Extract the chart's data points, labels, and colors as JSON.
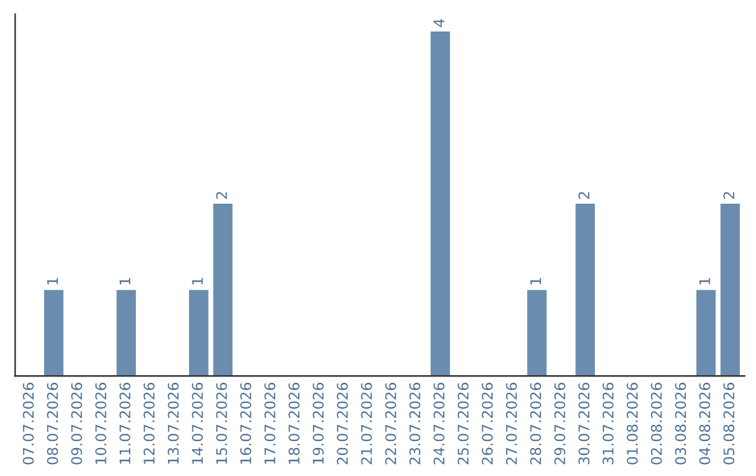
{
  "chart_data": {
    "type": "bar",
    "categories": [
      "07.07.2026",
      "08.07.2026",
      "09.07.2026",
      "10.07.2026",
      "11.07.2026",
      "12.07.2026",
      "13.07.2026",
      "14.07.2026",
      "15.07.2026",
      "16.07.2026",
      "17.07.2026",
      "18.07.2026",
      "19.07.2026",
      "20.07.2026",
      "21.07.2026",
      "22.07.2026",
      "23.07.2026",
      "24.07.2026",
      "25.07.2026",
      "26.07.2026",
      "27.07.2026",
      "28.07.2026",
      "29.07.2026",
      "30.07.2026",
      "31.07.2026",
      "01.08.2026",
      "02.08.2026",
      "03.08.2026",
      "04.08.2026",
      "05.08.2026"
    ],
    "values": [
      0,
      1,
      0,
      0,
      1,
      0,
      0,
      1,
      2,
      0,
      0,
      0,
      0,
      0,
      0,
      0,
      0,
      4,
      0,
      0,
      0,
      1,
      0,
      2,
      0,
      0,
      0,
      0,
      1,
      2
    ],
    "value_labels": [
      null,
      "1",
      null,
      null,
      "1",
      null,
      null,
      "1",
      "2",
      null,
      null,
      null,
      null,
      null,
      null,
      null,
      null,
      "4",
      null,
      null,
      null,
      "1",
      null,
      "2",
      null,
      null,
      null,
      null,
      "1",
      "2"
    ],
    "color": "#6a8caf",
    "tick_labels": "x",
    "grid": false,
    "legend": false
  }
}
